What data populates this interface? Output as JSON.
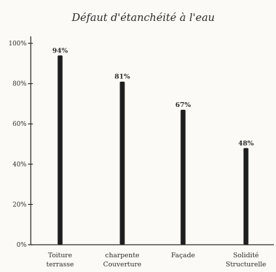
{
  "chart_data": {
    "type": "bar",
    "title": "Défaut d'étanchéité à l'eau",
    "xlabel": "",
    "ylabel": "",
    "categories": [
      [
        "Toiture",
        "terrasse"
      ],
      [
        "charpente",
        "Couverture"
      ],
      [
        "Façade"
      ],
      [
        "Solidité",
        "Structurelle"
      ]
    ],
    "values": [
      94,
      81,
      67,
      48
    ],
    "data_labels": [
      "94%",
      "81%",
      "67%",
      "48%"
    ],
    "y_ticks": [
      0,
      20,
      40,
      60,
      80,
      100
    ],
    "y_tick_labels": [
      "0%",
      "20%",
      "40%",
      "60%",
      "80%",
      "100%"
    ],
    "ylim": [
      0,
      100
    ],
    "grid": false,
    "bar_color": "#1e1e1e",
    "axis_color": "#2b2b2b"
  }
}
